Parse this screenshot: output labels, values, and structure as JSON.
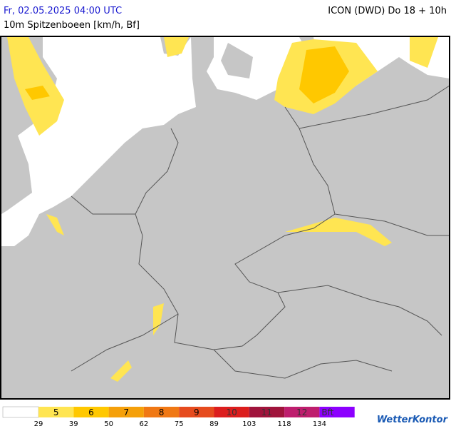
{
  "header": {
    "datetime": "Fr, 02.05.2025 04:00 UTC",
    "model": "ICON (DWD) Do 18 + 10h",
    "variable": "10m Spitzenboeen [km/h, Bf]"
  },
  "legend": {
    "classes": [
      {
        "label": "5",
        "color": "#ffe552"
      },
      {
        "label": "6",
        "color": "#ffc800"
      },
      {
        "label": "7",
        "color": "#f5a00a"
      },
      {
        "label": "8",
        "color": "#f07814"
      },
      {
        "label": "9",
        "color": "#e64b1e"
      },
      {
        "label": "10",
        "color": "#dc1e1e"
      },
      {
        "label": "11",
        "color": "#a0143c"
      },
      {
        "label": "12",
        "color": "#be1e6e"
      },
      {
        "label": "Bft",
        "color": "#8c00ff"
      }
    ],
    "thresholds": [
      29,
      39,
      50,
      62,
      75,
      89,
      103,
      118,
      134
    ]
  },
  "logo": "WetterKontor"
}
